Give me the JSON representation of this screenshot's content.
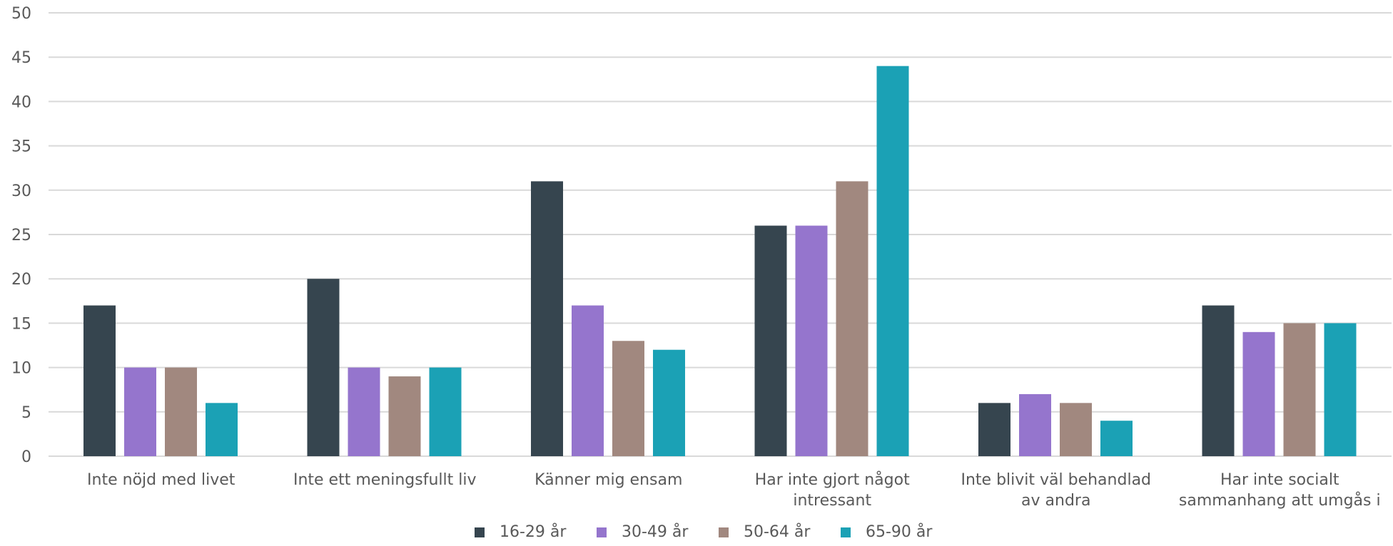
{
  "chart_data": {
    "type": "bar",
    "categories": [
      [
        "Inte nöjd med livet"
      ],
      [
        "Inte ett meningsfullt liv"
      ],
      [
        "Känner mig ensam"
      ],
      [
        "Har inte gjort något",
        "intressant"
      ],
      [
        "Inte blivit väl behandlad",
        "av andra"
      ],
      [
        "Har inte socialt",
        "sammanhang att umgås i"
      ]
    ],
    "series": [
      {
        "name": "16-29 år",
        "color": "#36454f",
        "values": [
          17,
          20,
          31,
          26,
          6,
          17
        ]
      },
      {
        "name": "30-49 år",
        "color": "#9575cd",
        "values": [
          10,
          10,
          17,
          26,
          7,
          14
        ]
      },
      {
        "name": "50-64 år",
        "color": "#a1887f",
        "values": [
          10,
          9,
          13,
          31,
          6,
          15
        ]
      },
      {
        "name": "65-90 år",
        "color": "#1ba1b5",
        "values": [
          6,
          10,
          12,
          44,
          4,
          15
        ]
      }
    ],
    "ylim": [
      0,
      50
    ],
    "yticks": [
      "0",
      "5",
      "10",
      "15",
      "20",
      "25",
      "30",
      "35",
      "40",
      "45",
      "50"
    ],
    "grid": true,
    "legend_position": "bottom"
  }
}
